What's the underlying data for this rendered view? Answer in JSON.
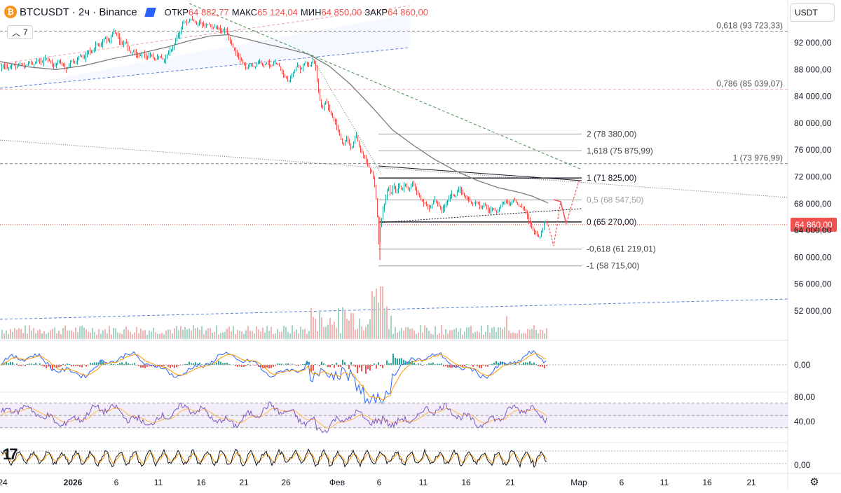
{
  "header": {
    "symbol": "BTCUSDT · 2ч · Binance",
    "coin_glyph": "₿",
    "open_label": "ОТКР",
    "open_value": "64 882,77",
    "high_label": "МАКС",
    "high_value": "65 124,04",
    "low_label": "МИН",
    "low_value": "64 850,00",
    "close_label": "ЗАКР",
    "close_value": "64 860,00",
    "indicators_count": "7",
    "currency": "USDT"
  },
  "colors": {
    "up": "#26a69a",
    "down": "#ef5350",
    "ma": "#7a7a7a",
    "fib": "#9e9e9e",
    "macd": "#2962ff",
    "signal": "#ff9800",
    "rsi": "#7e57c2",
    "rsi_ma": "#ffb74d",
    "projection": "#ef5350"
  },
  "chart_data": [
    {
      "type": "line",
      "title": "BTCUSDT · 2ч · Binance",
      "ylim": [
        50000,
        96000
      ],
      "y_ticks": [
        "92 000,00",
        "88 000,00",
        "84 000,00",
        "80 000,00",
        "76 000,00",
        "72 000,00",
        "68 000,00",
        "64 000,00",
        "60 000,00",
        "56 000,00",
        "52 000,00"
      ],
      "y_tick_values": [
        92000,
        88000,
        84000,
        80000,
        76000,
        72000,
        68000,
        64000,
        60000,
        56000,
        52000
      ],
      "last_price_label": "64 860,00",
      "last_price": 64860,
      "x_ticks": [
        "24",
        "2026",
        "6",
        "11",
        "16",
        "21",
        "26",
        "Фев",
        "6",
        "11",
        "16",
        "21",
        "Мар",
        "6",
        "11",
        "16",
        "21"
      ],
      "price_path": [
        [
          0,
          88200
        ],
        [
          6,
          88600
        ],
        [
          12,
          88000
        ],
        [
          18,
          88900
        ],
        [
          24,
          88400
        ],
        [
          30,
          89000
        ],
        [
          36,
          88300
        ],
        [
          42,
          89300
        ],
        [
          48,
          88700
        ],
        [
          54,
          89500
        ],
        [
          60,
          89000
        ],
        [
          66,
          89800
        ],
        [
          72,
          89200
        ],
        [
          78,
          88500
        ],
        [
          84,
          89300
        ],
        [
          90,
          88700
        ],
        [
          96,
          88000
        ],
        [
          102,
          89500
        ],
        [
          108,
          88800
        ],
        [
          114,
          90200
        ],
        [
          120,
          89600
        ],
        [
          126,
          91000
        ],
        [
          132,
          90400
        ],
        [
          138,
          92000
        ],
        [
          144,
          91300
        ],
        [
          150,
          92800
        ],
        [
          156,
          92100
        ],
        [
          162,
          93800
        ],
        [
          168,
          93100
        ],
        [
          174,
          91500
        ],
        [
          180,
          92300
        ],
        [
          186,
          90500
        ],
        [
          192,
          90800
        ],
        [
          198,
          89900
        ],
        [
          204,
          90600
        ],
        [
          210,
          89600
        ],
        [
          216,
          90200
        ],
        [
          222,
          89400
        ],
        [
          228,
          90100
        ],
        [
          234,
          89300
        ],
        [
          240,
          90400
        ],
        [
          246,
          91100
        ],
        [
          252,
          92500
        ],
        [
          258,
          93800
        ],
        [
          262,
          95200
        ],
        [
          268,
          95000
        ],
        [
          274,
          95600
        ],
        [
          280,
          94800
        ],
        [
          286,
          95000
        ],
        [
          292,
          94500
        ],
        [
          298,
          94800
        ],
        [
          304,
          94200
        ],
        [
          310,
          94400
        ],
        [
          316,
          93700
        ],
        [
          322,
          94000
        ],
        [
          328,
          92500
        ],
        [
          334,
          91000
        ],
        [
          340,
          90000
        ],
        [
          346,
          89200
        ],
        [
          352,
          88000
        ],
        [
          358,
          88800
        ],
        [
          364,
          88300
        ],
        [
          370,
          89400
        ],
        [
          376,
          88600
        ],
        [
          382,
          89100
        ],
        [
          388,
          88500
        ],
        [
          394,
          89000
        ],
        [
          400,
          88300
        ],
        [
          406,
          87000
        ],
        [
          412,
          86300
        ],
        [
          418,
          87200
        ],
        [
          424,
          88600
        ],
        [
          430,
          88000
        ],
        [
          436,
          89200
        ],
        [
          442,
          88400
        ],
        [
          448,
          89600
        ],
        [
          452,
          87500
        ],
        [
          456,
          84000
        ],
        [
          460,
          82000
        ],
        [
          466,
          83500
        ],
        [
          472,
          81500
        ],
        [
          478,
          80200
        ],
        [
          484,
          78500
        ],
        [
          490,
          76800
        ],
        [
          496,
          77800
        ],
        [
          502,
          76000
        ],
        [
          508,
          78500
        ],
        [
          514,
          76300
        ],
        [
          520,
          75000
        ],
        [
          526,
          73500
        ],
        [
          532,
          72600
        ],
        [
          536,
          70000
        ],
        [
          539,
          66000
        ],
        [
          541,
          62500
        ],
        [
          543,
          64500
        ],
        [
          546,
          66500
        ],
        [
          550,
          68500
        ],
        [
          554,
          70400
        ],
        [
          558,
          69200
        ],
        [
          562,
          70800
        ],
        [
          566,
          69500
        ],
        [
          570,
          71000
        ],
        [
          574,
          69800
        ],
        [
          578,
          71100
        ],
        [
          584,
          70000
        ],
        [
          590,
          71300
        ],
        [
          596,
          69500
        ],
        [
          602,
          68400
        ],
        [
          608,
          67900
        ],
        [
          614,
          67200
        ],
        [
          620,
          68800
        ],
        [
          626,
          67700
        ],
        [
          632,
          67000
        ],
        [
          638,
          68300
        ],
        [
          644,
          69500
        ],
        [
          650,
          69000
        ],
        [
          656,
          70300
        ],
        [
          662,
          69300
        ],
        [
          668,
          68700
        ],
        [
          674,
          68000
        ],
        [
          680,
          68400
        ],
        [
          686,
          67500
        ],
        [
          692,
          67900
        ],
        [
          698,
          66800
        ],
        [
          704,
          67400
        ],
        [
          710,
          66600
        ],
        [
          716,
          67900
        ],
        [
          722,
          68500
        ],
        [
          728,
          67800
        ],
        [
          734,
          68800
        ],
        [
          740,
          67700
        ],
        [
          746,
          67400
        ],
        [
          750,
          67100
        ],
        [
          754,
          65700
        ],
        [
          758,
          64800
        ],
        [
          762,
          64000
        ],
        [
          766,
          63500
        ],
        [
          770,
          62900
        ],
        [
          774,
          64000
        ],
        [
          778,
          65600
        ],
        [
          782,
          64860
        ]
      ],
      "ma_path": [
        [
          0,
          89200
        ],
        [
          40,
          88400
        ],
        [
          80,
          88000
        ],
        [
          120,
          88600
        ],
        [
          160,
          89600
        ],
        [
          200,
          90400
        ],
        [
          240,
          91400
        ],
        [
          270,
          92300
        ],
        [
          300,
          93000
        ],
        [
          325,
          93200
        ],
        [
          350,
          92600
        ],
        [
          380,
          91800
        ],
        [
          410,
          91100
        ],
        [
          440,
          90300
        ],
        [
          470,
          88500
        ],
        [
          500,
          85800
        ],
        [
          530,
          82500
        ],
        [
          560,
          79000
        ],
        [
          590,
          76700
        ],
        [
          620,
          74600
        ],
        [
          650,
          72900
        ],
        [
          680,
          71500
        ],
        [
          710,
          70400
        ],
        [
          740,
          69700
        ],
        [
          760,
          69100
        ],
        [
          782,
          68100
        ]
      ],
      "fib_levels": [
        {
          "label": "2 (78 380,00)",
          "value": 78380
        },
        {
          "label": "1,618 (75 875,99)",
          "value": 75876
        },
        {
          "label": "1 (71 825,00)",
          "value": 71825
        },
        {
          "label": "0,5 (68 547,50)",
          "value": 68547.5
        },
        {
          "label": "0 (65 270,00)",
          "value": 65270
        },
        {
          "label": "-0,618 (61 219,01)",
          "value": 61219
        },
        {
          "label": "-1 (58 715,00)",
          "value": 58715
        }
      ],
      "fib_ext_levels": [
        {
          "label": "0,618 (93 723,33)",
          "value": 93723
        },
        {
          "label": "0,786 (85 039,07)",
          "value": 85039
        },
        {
          "label": "1 (73 976,99)",
          "value": 73977
        }
      ],
      "projection_path": [
        [
          782,
          64860
        ],
        [
          790,
          61700
        ],
        [
          800,
          68300
        ],
        [
          808,
          65000
        ],
        [
          818,
          68600
        ],
        [
          828,
          72000
        ]
      ],
      "grid": false
    },
    {
      "type": "bar",
      "title": "",
      "xlabel": "",
      "ylabel": "Volume",
      "comment": "volume histogram, relative units"
    },
    {
      "type": "line",
      "title": "",
      "y_ticks": [
        "0,00"
      ],
      "series": [
        {
          "values": []
        },
        {
          "values": []
        }
      ]
    },
    {
      "type": "line",
      "title": "",
      "ylim": [
        20,
        90
      ],
      "y_ticks": [
        "80,00",
        "40,00"
      ],
      "y_tick_values": [
        80,
        40
      ],
      "band": [
        30,
        70
      ]
    },
    {
      "type": "line",
      "title": "",
      "y_ticks": [
        "0,00"
      ]
    }
  ]
}
